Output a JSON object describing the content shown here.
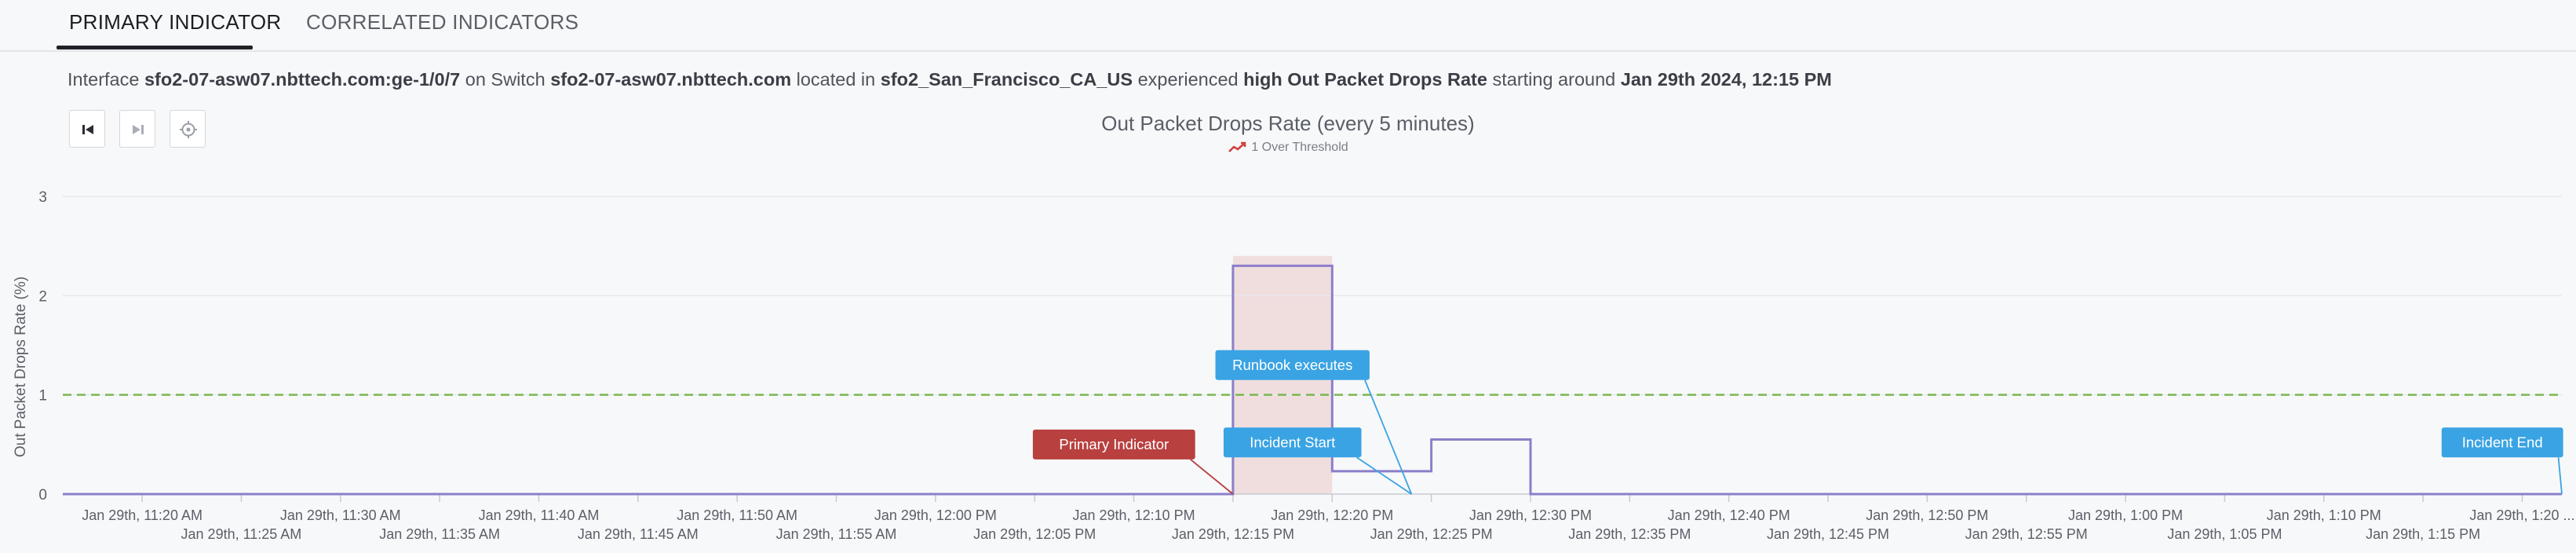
{
  "tabs": [
    {
      "label": "PRIMARY INDICATOR",
      "active": true
    },
    {
      "label": "CORRELATED INDICATORS",
      "active": false
    }
  ],
  "summary": {
    "p1": "Interface ",
    "interface": "sfo2-07-asw07.nbttech.com:ge-1/0/7",
    "p2": " on Switch ",
    "switch": "sfo2-07-asw07.nbttech.com",
    "p3": " located in ",
    "location": "sfo2_San_Francisco_CA_US",
    "p4": " experienced ",
    "issue": "high Out Packet Drops Rate",
    "p5": " starting around ",
    "start": "Jan 29th 2024, 12:15 PM"
  },
  "controls": [
    {
      "name": "skip-to-start-icon"
    },
    {
      "name": "skip-to-end-icon"
    },
    {
      "name": "crosshair-icon"
    }
  ],
  "chart_data": {
    "type": "line",
    "title": "Out Packet Drops Rate (every 5 minutes)",
    "legend": [
      "1 Over Threshold"
    ],
    "ylabel": "Out Packet Drops Rate (%)",
    "ylim": [
      0,
      3
    ],
    "yticks": [
      0,
      1,
      2,
      3
    ],
    "xlim": [
      "11:16",
      "13:22"
    ],
    "xticks": [
      {
        "t": "11:20",
        "label": "Jan 29th, 11:20 AM",
        "row": 0
      },
      {
        "t": "11:25",
        "label": "Jan 29th, 11:25 AM",
        "row": 1
      },
      {
        "t": "11:30",
        "label": "Jan 29th, 11:30 AM",
        "row": 0
      },
      {
        "t": "11:35",
        "label": "Jan 29th, 11:35 AM",
        "row": 1
      },
      {
        "t": "11:40",
        "label": "Jan 29th, 11:40 AM",
        "row": 0
      },
      {
        "t": "11:45",
        "label": "Jan 29th, 11:45 AM",
        "row": 1
      },
      {
        "t": "11:50",
        "label": "Jan 29th, 11:50 AM",
        "row": 0
      },
      {
        "t": "11:55",
        "label": "Jan 29th, 11:55 AM",
        "row": 1
      },
      {
        "t": "12:00",
        "label": "Jan 29th, 12:00 PM",
        "row": 0
      },
      {
        "t": "12:05",
        "label": "Jan 29th, 12:05 PM",
        "row": 1
      },
      {
        "t": "12:10",
        "label": "Jan 29th, 12:10 PM",
        "row": 0
      },
      {
        "t": "12:15",
        "label": "Jan 29th, 12:15 PM",
        "row": 1
      },
      {
        "t": "12:20",
        "label": "Jan 29th, 12:20 PM",
        "row": 0
      },
      {
        "t": "12:25",
        "label": "Jan 29th, 12:25 PM",
        "row": 1
      },
      {
        "t": "12:30",
        "label": "Jan 29th, 12:30 PM",
        "row": 0
      },
      {
        "t": "12:35",
        "label": "Jan 29th, 12:35 PM",
        "row": 1
      },
      {
        "t": "12:40",
        "label": "Jan 29th, 12:40 PM",
        "row": 0
      },
      {
        "t": "12:45",
        "label": "Jan 29th, 12:45 PM",
        "row": 1
      },
      {
        "t": "12:50",
        "label": "Jan 29th, 12:50 PM",
        "row": 0
      },
      {
        "t": "12:55",
        "label": "Jan 29th, 12:55 PM",
        "row": 1
      },
      {
        "t": "13:00",
        "label": "Jan 29th, 1:00 PM",
        "row": 0
      },
      {
        "t": "13:05",
        "label": "Jan 29th, 1:05 PM",
        "row": 1
      },
      {
        "t": "13:10",
        "label": "Jan 29th, 1:10 PM",
        "row": 0
      },
      {
        "t": "13:15",
        "label": "Jan 29th, 1:15 PM",
        "row": 1
      },
      {
        "t": "13:20",
        "label": "Jan 29th, 1:20 ...",
        "row": 0
      }
    ],
    "series": [
      {
        "color": "#8b7fc9",
        "step": "end",
        "points": [
          [
            "11:16",
            0
          ],
          [
            "12:15",
            0
          ],
          [
            "12:15",
            2.3
          ],
          [
            "12:20",
            2.3
          ],
          [
            "12:20",
            0.23
          ],
          [
            "12:25",
            0.23
          ],
          [
            "12:25",
            0.55
          ],
          [
            "12:30",
            0.55
          ],
          [
            "12:30",
            0
          ],
          [
            "13:22",
            0
          ]
        ]
      }
    ],
    "threshold": {
      "value": 1,
      "color": "#7ab850"
    },
    "highlight": {
      "from": "12:15",
      "to": "12:20",
      "top": 2.4,
      "color": "#f0dede"
    },
    "annotations": [
      {
        "text": "Primary Indicator",
        "color": "#b8403f",
        "at": "12:15",
        "value": 0,
        "label_t": "12:09",
        "label_v": 0.5
      },
      {
        "text": "Runbook executes",
        "color": "#3aa3e3",
        "at": "12:24",
        "value": 0,
        "label_t": "12:18",
        "label_v": 1.3
      },
      {
        "text": "Incident Start",
        "color": "#3aa3e3",
        "at": "12:24",
        "value": 0,
        "label_t": "12:18",
        "label_v": 0.52
      },
      {
        "text": "Incident End",
        "color": "#3aa3e3",
        "at": "13:22",
        "value": 0,
        "label_t": "13:19",
        "label_v": 0.52
      }
    ]
  }
}
